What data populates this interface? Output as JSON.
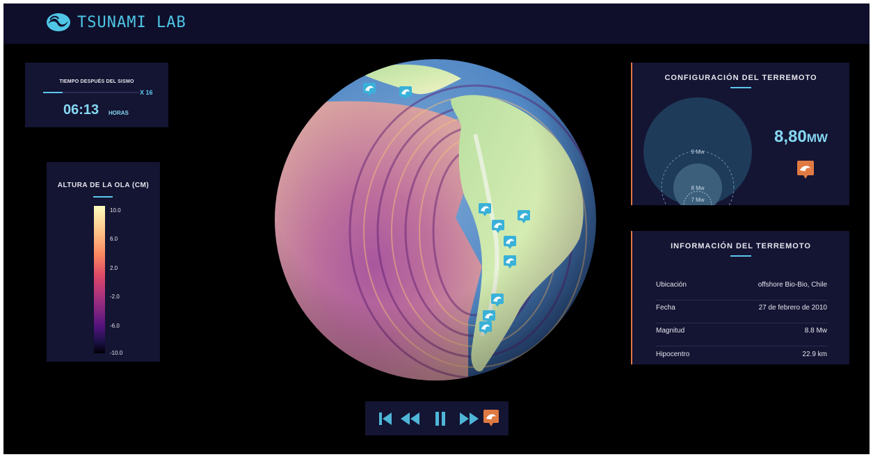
{
  "app": {
    "title": "TSUNAMI LAB"
  },
  "timer": {
    "caption": "TIEMPO DESPUÉS DEL SISMO",
    "speed": "X 16",
    "value": "06:13",
    "unit": "HORAS",
    "progress": 0.2
  },
  "wave_scale": {
    "title": "ALTURA DE LA OLA (CM)",
    "labels": [
      "10.0",
      "6.0",
      "2.0",
      "-2.0",
      "-6.0",
      "-10.0"
    ]
  },
  "config": {
    "title": "CONFIGURACIÓN DEL TERREMOTO",
    "magnitude_value": "8,80",
    "magnitude_unit": "MW",
    "circle_labels": {
      "large": "9 Mw",
      "medium": "8 Mw",
      "small": "7 Mw"
    }
  },
  "info": {
    "title": "INFORMACIÓN DEL TERREMOTO",
    "rows": [
      {
        "label": "Ubicación",
        "value": "offshore Bio-Bio, Chile"
      },
      {
        "label": "Fecha",
        "value": "27 de febrero de 2010"
      },
      {
        "label": "Magnitud",
        "value": "8.8 Mw"
      },
      {
        "label": "Hipocentro",
        "value": "22.9 km"
      }
    ]
  },
  "controls": [
    "skip-to-start",
    "rewind",
    "pause",
    "fast-forward",
    "tsunami-marker"
  ],
  "colors": {
    "accent": "#5cc8ec",
    "orange": "#e07a43",
    "panel": "#141433",
    "header": "#0f0f2b",
    "marker": "#3ab1d8"
  }
}
